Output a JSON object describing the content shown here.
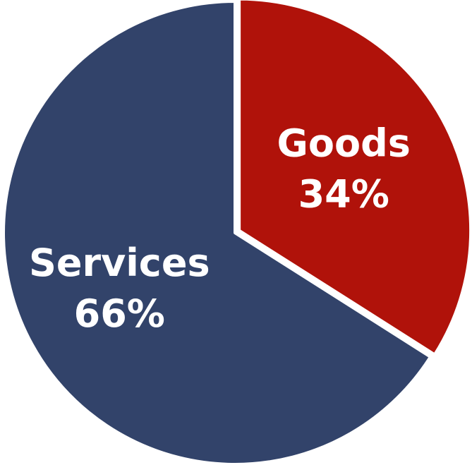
{
  "chart_data": {
    "type": "pie",
    "title": "",
    "slices": [
      {
        "label": "Goods",
        "value": 34,
        "value_label": "34%",
        "color": "#B0120A"
      },
      {
        "label": "Services",
        "value": 66,
        "value_label": "66%",
        "color": "#32436A"
      }
    ],
    "start_angle_deg": 0,
    "direction": "clockwise",
    "slice_border_color": "#ffffff",
    "legend": "none"
  }
}
